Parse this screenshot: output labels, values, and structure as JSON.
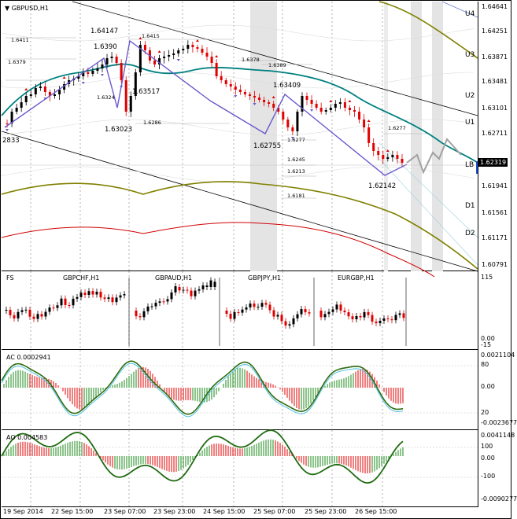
{
  "main_title": "GBPUSD,H1",
  "main_axis_labels": [
    "1.64641",
    "1.64251",
    "1.63871",
    "1.63481",
    "1.63101",
    "1.62711",
    "1.62319",
    "1.61941",
    "1.61561",
    "1.61171",
    "1.60791"
  ],
  "current_price": "1.62319",
  "level_labels": [
    "U4",
    "U3",
    "U2",
    "U1",
    "LB",
    "D1",
    "D2"
  ],
  "pivot_labels": [
    "1.64147",
    "1.6390",
    "1.63517",
    "1.63023",
    "1.63409",
    "1.62755",
    "1.62142",
    "2833",
    "1.6411",
    "1.6379",
    "1.6415",
    "1.6324",
    "1.6286",
    "1.6378",
    "1.6389",
    "1.6277",
    "1.6245",
    "1.6213",
    "1.6181",
    "1.6277"
  ],
  "fx_pane": {
    "titles": [
      "FS",
      "GBPCHF,H1",
      "GBPAUD,H1",
      "GBPJPY,H1",
      "EURGBP,H1"
    ],
    "axis_labels": [
      "115",
      "0.00",
      "-15"
    ]
  },
  "ac_pane": {
    "title": "AC 0.0002941",
    "axis_labels": [
      "0.0021104",
      "80",
      "0.00",
      "20",
      "-0.0023677"
    ]
  },
  "ao_pane": {
    "title": "AO 0.004583",
    "axis_labels": [
      "0.0041148",
      "100",
      "0.00",
      "-100",
      "-0.0090277"
    ]
  },
  "time_axis": [
    "19 Sep 2014",
    "22 Sep 15:00",
    "23 Sep 07:00",
    "23 Sep 23:00",
    "24 Sep 15:00",
    "25 Sep 07:00",
    "25 Sep 23:00",
    "26 Sep 15:00"
  ],
  "colors": {
    "bull": "#000000",
    "bear": "#e00000",
    "ma_teal": "#008080",
    "env_olive": "#808000",
    "env_red": "#d00000",
    "zigzag": "#6a5acd",
    "grid": "#808080"
  }
}
